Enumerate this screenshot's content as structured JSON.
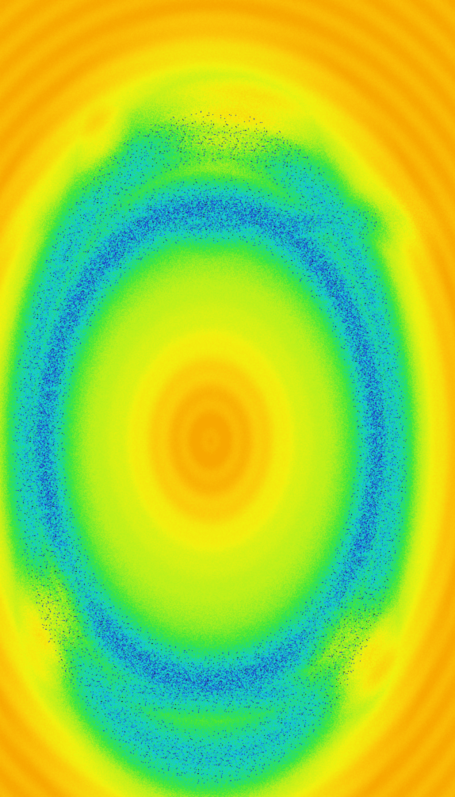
{
  "image": {
    "subject": "",
    "palette": {
      "orange": "#f7a800",
      "amber": "#fbc80a",
      "yellow": "#f2f20f",
      "lime": "#b8f01c",
      "green": "#3ee63a",
      "teal": "#18d6a0",
      "cyan": "#18c8e8",
      "blue": "#2040c0",
      "dark": "#202020"
    }
  }
}
